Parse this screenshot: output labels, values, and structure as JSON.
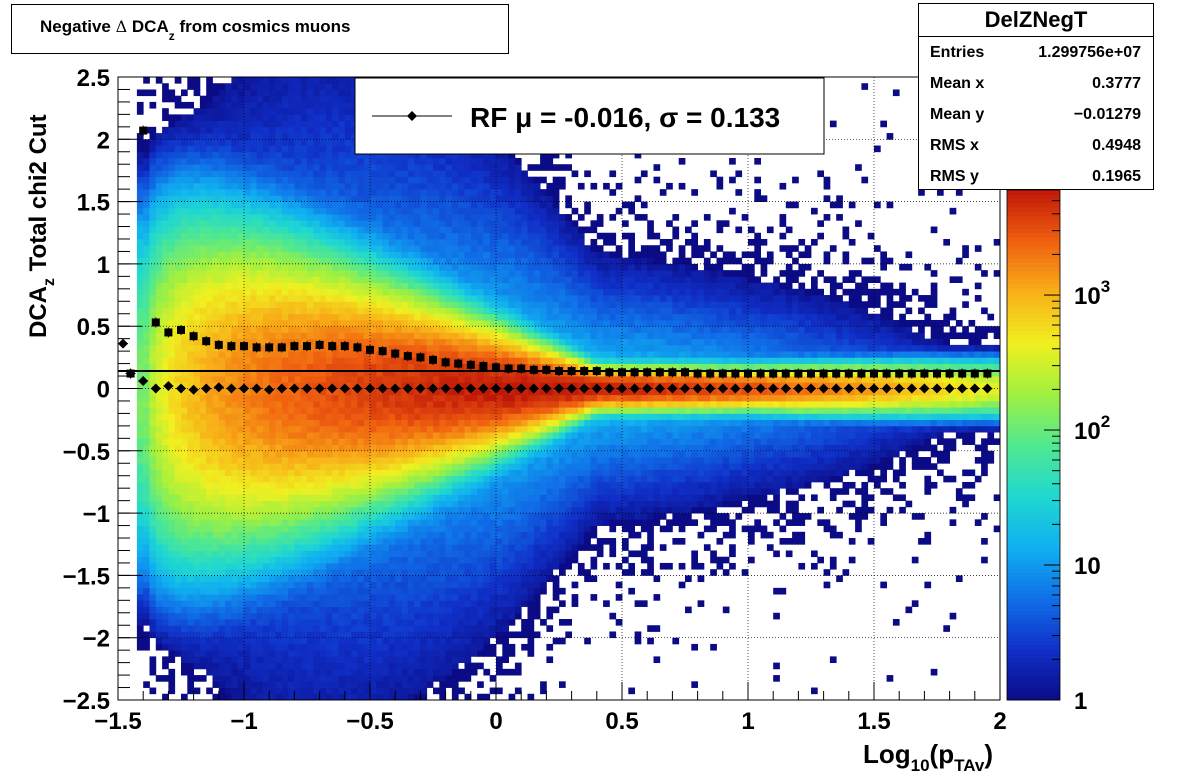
{
  "title": {
    "main": "Negative",
    "delta": "Δ",
    "dca": "DCA",
    "sub": "z",
    "rest": "from cosmics muons"
  },
  "stats": {
    "name": "DelZNegT",
    "rows": [
      {
        "label": "Entries",
        "value": "1.299756e+07"
      },
      {
        "label": "Mean x",
        "value": "0.3777"
      },
      {
        "label": "Mean y",
        "value": "−0.01279"
      },
      {
        "label": "RMS x",
        "value": "0.4948"
      },
      {
        "label": "RMS y",
        "value": "0.1965"
      }
    ]
  },
  "legend": {
    "label": "RF μ = -0.016, σ =   0.133"
  },
  "axes": {
    "ylabel_main": "DCA",
    "ylabel_sub": "z",
    "ylabel_rest": "Total chi2 Cut",
    "xlabel_main": "Log",
    "xlabel_sub1": "10",
    "xlabel_mid": "(p",
    "xlabel_sub2": "TAv",
    "xlabel_end": ")"
  },
  "colorbar": {
    "labels": [
      {
        "base": "1",
        "exp": "",
        "value": 1
      },
      {
        "base": "10",
        "exp": "",
        "value": 10
      },
      {
        "base": "10",
        "exp": "2",
        "value": 100
      },
      {
        "base": "10",
        "exp": "3",
        "value": 1000
      }
    ],
    "max": 6000,
    "colors": [
      "#0b0b86",
      "#1030c8",
      "#1070e8",
      "#10b0f0",
      "#20d8d0",
      "#50e890",
      "#a0f040",
      "#f0f020",
      "#f8b018",
      "#f06010",
      "#c01808"
    ]
  },
  "chart_data": {
    "type": "heatmap",
    "title": "Negative Δ DCAz from cosmics muons",
    "xlabel": "Log10(pTAv)",
    "ylabel": "DCAz Total chi2 Cut",
    "xlim": [
      -1.5,
      2
    ],
    "ylim": [
      -2.5,
      2.5
    ],
    "zscale": "log",
    "zlim": [
      1,
      6000
    ],
    "xticks": [
      "−1.5",
      "−1",
      "−0.5",
      "0",
      "0.5",
      "1",
      "1.5",
      "2"
    ],
    "yticks": [
      "−2.5",
      "−2",
      "−1.5",
      "−1",
      "−0.5",
      "0",
      "0.5",
      "1",
      "1.5",
      "2",
      "2.5"
    ],
    "xtick_values": [
      -1.5,
      -1,
      -0.5,
      0,
      0.5,
      1,
      1.5,
      2
    ],
    "ytick_values": [
      -2.5,
      -2,
      -1.5,
      -1,
      -0.5,
      0,
      0.5,
      1,
      1.5,
      2,
      2.5
    ],
    "grid": true,
    "hline": 0.14,
    "sigma_series": {
      "marker": "square",
      "x": [
        -1.45,
        -1.4,
        -1.35,
        -1.3,
        -1.25,
        -1.2,
        -1.15,
        -1.1,
        -1.05,
        -1.0,
        -0.95,
        -0.9,
        -0.85,
        -0.8,
        -0.75,
        -0.7,
        -0.65,
        -0.6,
        -0.55,
        -0.5,
        -0.45,
        -0.4,
        -0.35,
        -0.3,
        -0.25,
        -0.2,
        -0.15,
        -0.1,
        -0.05,
        0.0,
        0.05,
        0.1,
        0.15,
        0.2,
        0.25,
        0.3,
        0.35,
        0.4,
        0.45,
        0.5,
        0.55,
        0.6,
        0.65,
        0.7,
        0.75,
        0.8,
        0.85,
        0.9,
        0.95,
        1.0,
        1.05,
        1.1,
        1.15,
        1.2,
        1.25,
        1.3,
        1.35,
        1.4,
        1.45,
        1.5,
        1.55,
        1.6,
        1.65,
        1.7,
        1.75,
        1.8,
        1.85,
        1.9,
        1.95
      ],
      "y": [
        0.12,
        2.07,
        0.53,
        0.45,
        0.47,
        0.42,
        0.38,
        0.35,
        0.34,
        0.34,
        0.33,
        0.33,
        0.33,
        0.34,
        0.34,
        0.35,
        0.34,
        0.34,
        0.33,
        0.31,
        0.3,
        0.28,
        0.26,
        0.25,
        0.23,
        0.21,
        0.2,
        0.19,
        0.18,
        0.17,
        0.16,
        0.16,
        0.15,
        0.15,
        0.14,
        0.14,
        0.14,
        0.14,
        0.13,
        0.13,
        0.13,
        0.13,
        0.13,
        0.13,
        0.13,
        0.12,
        0.12,
        0.12,
        0.12,
        0.12,
        0.12,
        0.12,
        0.12,
        0.12,
        0.12,
        0.12,
        0.12,
        0.12,
        0.12,
        0.12,
        0.12,
        0.12,
        0.12,
        0.12,
        0.12,
        0.12,
        0.12,
        0.12,
        0.12
      ]
    },
    "mean_series": {
      "marker": "diamond",
      "x": [
        -1.48,
        -1.45,
        -1.4,
        -1.35,
        -1.3,
        -1.25,
        -1.2,
        -1.15,
        -1.1,
        -1.05,
        -1.0,
        -0.95,
        -0.9,
        -0.85,
        -0.8,
        -0.75,
        -0.7,
        -0.65,
        -0.6,
        -0.55,
        -0.5,
        -0.45,
        -0.4,
        -0.35,
        -0.3,
        -0.25,
        -0.2,
        -0.15,
        -0.1,
        -0.05,
        0.0,
        0.05,
        0.1,
        0.15,
        0.2,
        0.25,
        0.3,
        0.35,
        0.4,
        0.45,
        0.5,
        0.55,
        0.6,
        0.65,
        0.7,
        0.75,
        0.8,
        0.85,
        0.9,
        0.95,
        1.0,
        1.05,
        1.1,
        1.15,
        1.2,
        1.25,
        1.3,
        1.35,
        1.4,
        1.45,
        1.5,
        1.55,
        1.6,
        1.65,
        1.7,
        1.75,
        1.8,
        1.85,
        1.9,
        1.95
      ],
      "y": [
        0.36,
        0.12,
        0.06,
        0.0,
        0.02,
        0.0,
        -0.01,
        0.0,
        0.01,
        0.0,
        0.0,
        0.0,
        -0.01,
        0.0,
        0.0,
        0.0,
        0.0,
        0.0,
        0.0,
        0.0,
        0.0,
        0.0,
        0.0,
        0.0,
        0.0,
        0.0,
        0.0,
        0.0,
        0.0,
        0.0,
        0.0,
        0.0,
        0.0,
        0.0,
        0.0,
        0.0,
        0.0,
        0.0,
        0.0,
        0.0,
        0.0,
        0.0,
        0.0,
        0.0,
        0.0,
        0.0,
        0.0,
        0.0,
        0.0,
        0.0,
        0.0,
        0.0,
        0.0,
        0.0,
        0.0,
        0.0,
        0.0,
        0.0,
        0.0,
        0.0,
        0.0,
        0.0,
        0.0,
        0.0,
        0.0,
        0.0,
        0.0,
        0.0,
        0.0,
        0.0
      ]
    }
  }
}
